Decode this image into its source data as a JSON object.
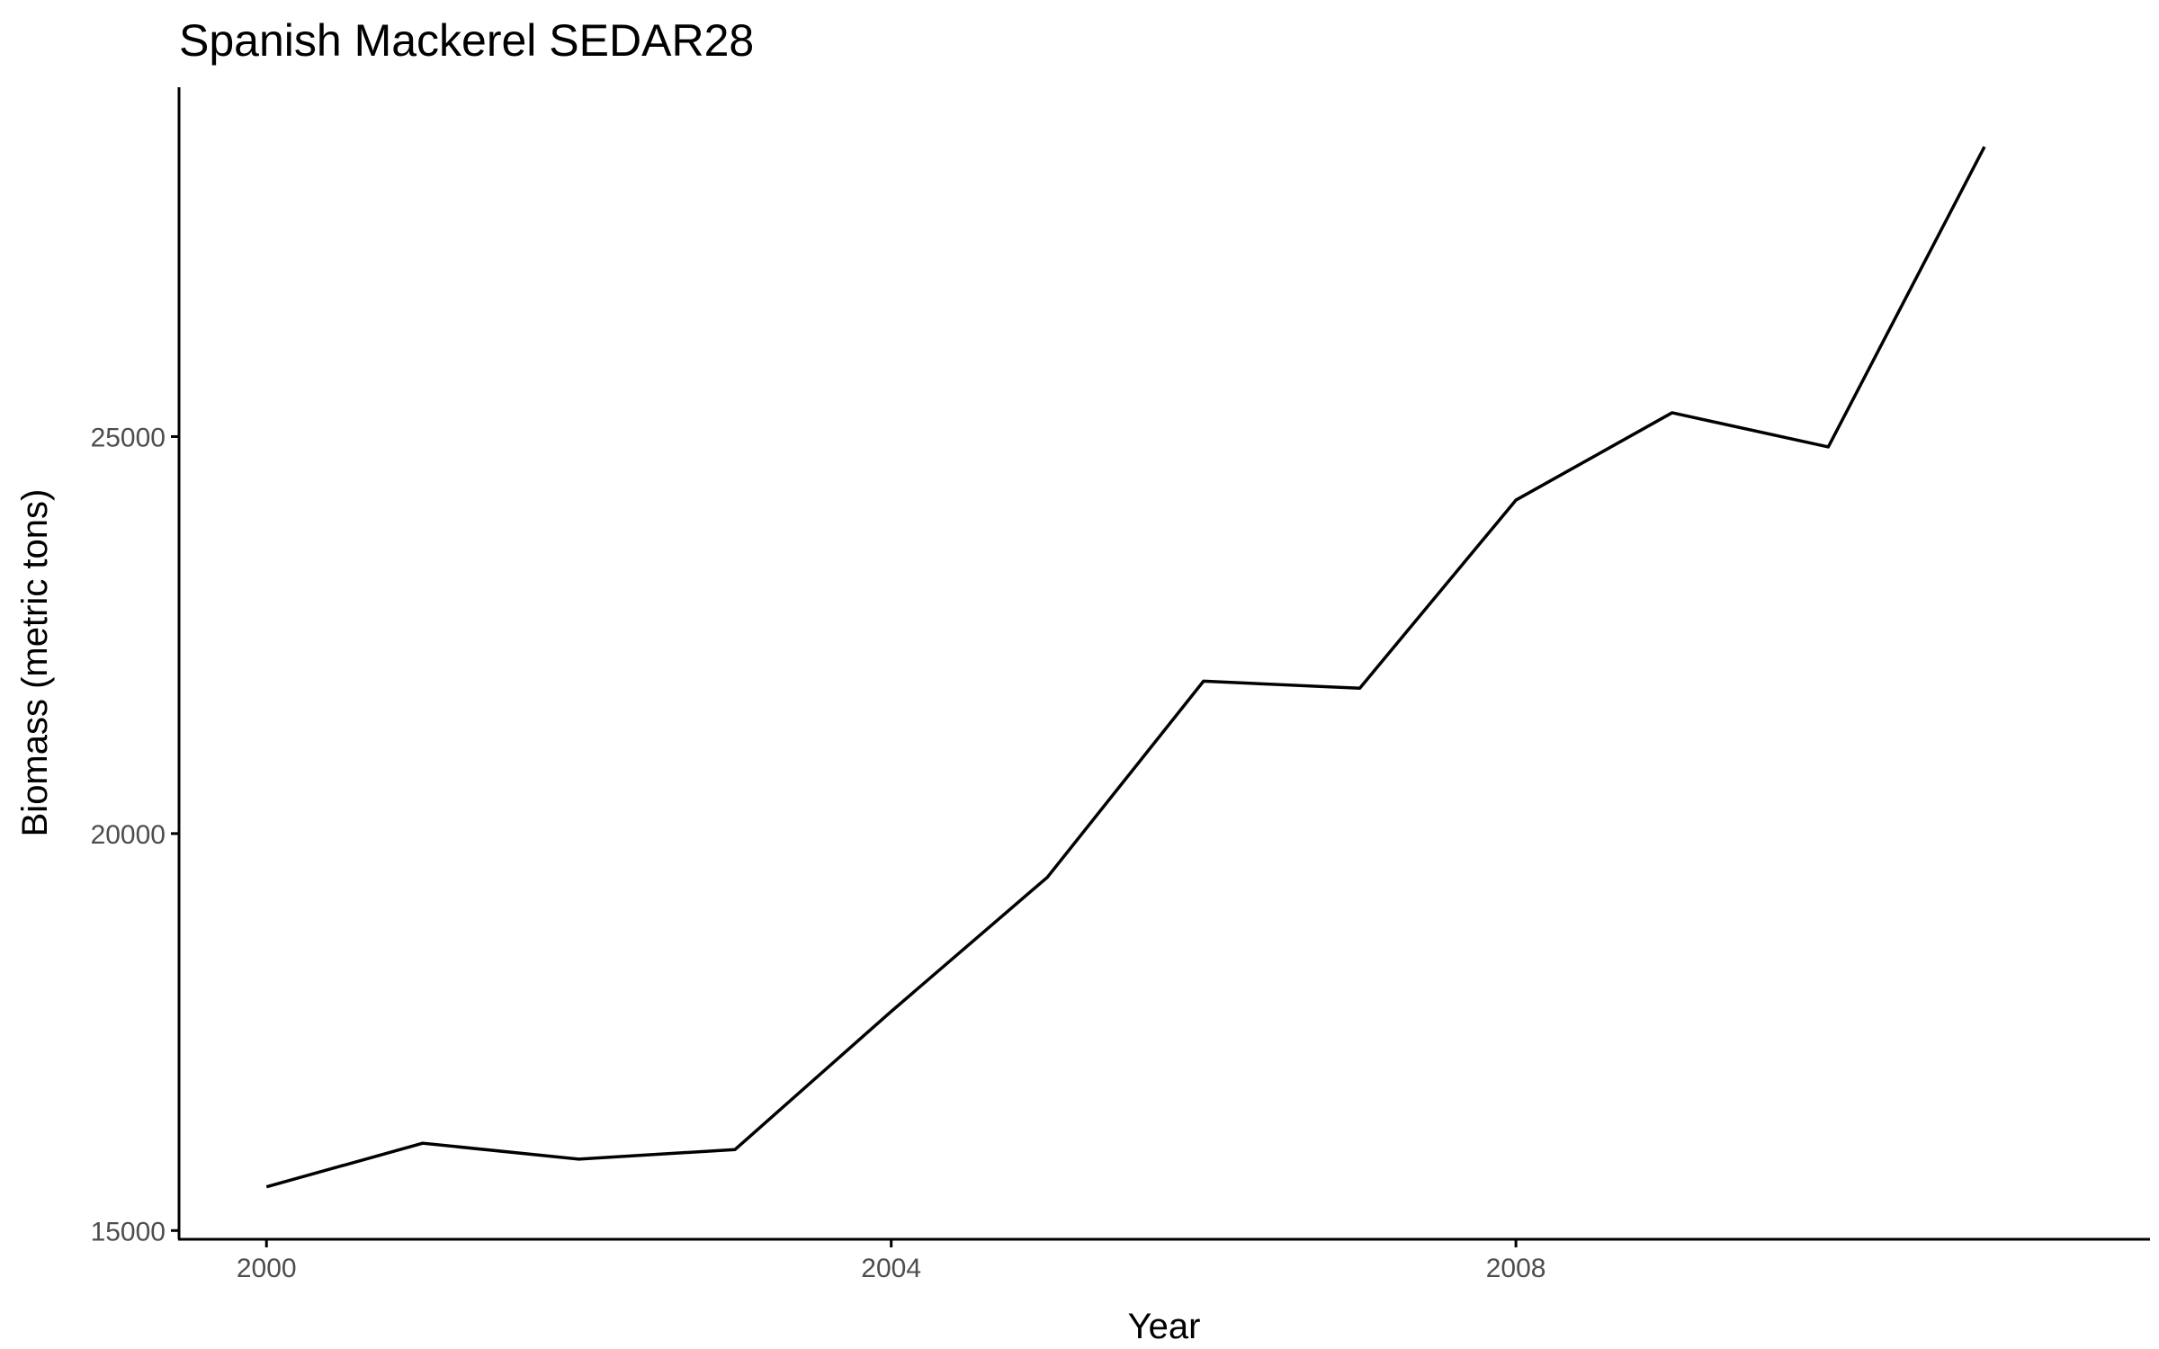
{
  "chart_data": {
    "type": "line",
    "title": "Spanish Mackerel SEDAR28",
    "xlabel": "Year",
    "ylabel": "Biomass (metric tons)",
    "x": [
      2000,
      2001,
      2002,
      2003,
      2004,
      2005,
      2006,
      2007,
      2008,
      2009,
      2010,
      2011
    ],
    "series": [
      {
        "values": [
          15550,
          16100,
          15900,
          16020,
          17760,
          19450,
          21920,
          21830,
          24200,
          25300,
          24870,
          28650
        ]
      }
    ],
    "xlim": [
      1999.44,
      2012.06
    ],
    "ylim": [
      14890,
      29400
    ],
    "x_ticks": [
      2000,
      2004,
      2008
    ],
    "y_ticks": [
      15000,
      20000,
      25000
    ],
    "line_color": "#000000",
    "grid": false,
    "legend": "none"
  }
}
